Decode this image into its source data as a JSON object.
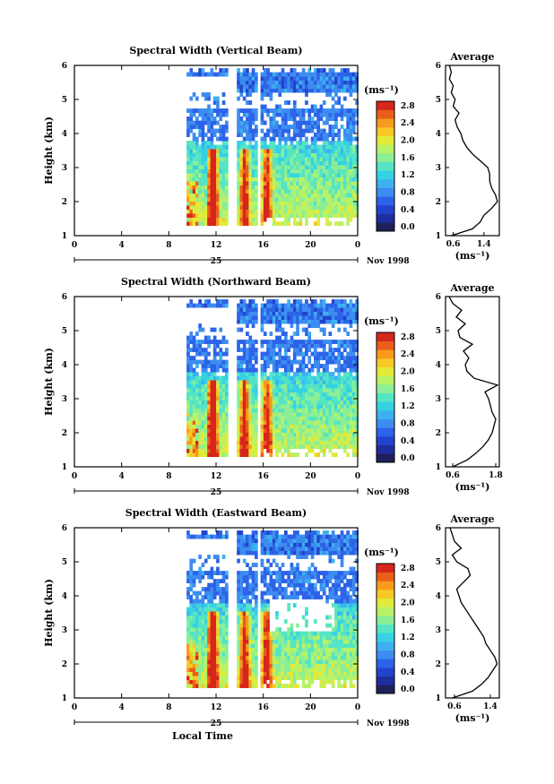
{
  "chart_data": [
    {
      "type": "heatmap",
      "title": "Spectral Width (Vertical Beam)",
      "ylabel": "Height (km)",
      "xlabel": "",
      "x_ticks": [
        "0",
        "4",
        "8",
        "12",
        "16",
        "20",
        "0"
      ],
      "y_ticks": [
        "1",
        "2",
        "3",
        "4",
        "5",
        "6"
      ],
      "xlim": [
        0,
        24
      ],
      "ylim": [
        1,
        6
      ],
      "date_day": "25",
      "date_label": "Nov 1998",
      "colorbar": {
        "unit": "(ms⁻¹)",
        "ticks": [
          "0.0",
          "0.4",
          "0.8",
          "1.2",
          "1.6",
          "2.0",
          "2.4",
          "2.8"
        ],
        "range": [
          0.0,
          3.0
        ]
      },
      "data_gaps_hours": [
        [
          0,
          9.5
        ],
        [
          13.0,
          13.6
        ],
        [
          15.3,
          15.7
        ]
      ],
      "average_profile": {
        "title": "Average",
        "xlabel": "(ms⁻¹)",
        "x_ticks": [
          "0.6",
          "1.4"
        ],
        "xlim": [
          0.4,
          1.8
        ],
        "y_ticks": [
          "1",
          "2",
          "3",
          "4",
          "5",
          "6"
        ],
        "height": [
          1.0,
          1.2,
          1.4,
          1.6,
          1.8,
          2.0,
          2.2,
          2.4,
          2.6,
          2.8,
          3.0,
          3.2,
          3.4,
          3.6,
          3.8,
          4.0,
          4.2,
          4.4,
          4.6,
          4.8,
          5.0,
          5.2,
          5.4,
          5.6,
          5.8,
          6.0
        ],
        "values": [
          0.55,
          1.1,
          1.3,
          1.4,
          1.6,
          1.75,
          1.7,
          1.6,
          1.55,
          1.55,
          1.5,
          1.3,
          1.1,
          0.95,
          0.85,
          0.8,
          0.7,
          0.65,
          0.75,
          0.6,
          0.65,
          0.55,
          0.6,
          0.5,
          0.55,
          0.5
        ]
      }
    },
    {
      "type": "heatmap",
      "title": "Spectral Width (Northward Beam)",
      "ylabel": "Height (km)",
      "xlabel": "",
      "x_ticks": [
        "0",
        "4",
        "8",
        "12",
        "16",
        "20",
        "0"
      ],
      "y_ticks": [
        "1",
        "2",
        "3",
        "4",
        "5",
        "6"
      ],
      "xlim": [
        0,
        24
      ],
      "ylim": [
        1,
        6
      ],
      "date_day": "25",
      "date_label": "Nov 1998",
      "colorbar": {
        "unit": "(ms⁻¹)",
        "ticks": [
          "0.0",
          "0.4",
          "0.8",
          "1.2",
          "1.6",
          "2.0",
          "2.4",
          "2.8"
        ],
        "range": [
          0.0,
          3.0
        ]
      },
      "data_gaps_hours": [
        [
          0,
          9.5
        ],
        [
          13.0,
          13.6
        ],
        [
          15.3,
          15.7
        ]
      ],
      "average_profile": {
        "title": "Average",
        "xlabel": "(ms⁻¹)",
        "x_ticks": [
          "0.6",
          "1.8"
        ],
        "xlim": [
          0.4,
          1.9
        ],
        "y_ticks": [
          "1",
          "2",
          "3",
          "4",
          "5",
          "6"
        ],
        "height": [
          1.0,
          1.2,
          1.4,
          1.6,
          1.8,
          2.0,
          2.2,
          2.4,
          2.6,
          2.8,
          3.0,
          3.2,
          3.4,
          3.6,
          3.8,
          4.0,
          4.2,
          4.4,
          4.6,
          4.8,
          5.0,
          5.2,
          5.4,
          5.6,
          5.8,
          6.0
        ],
        "values": [
          0.6,
          1.0,
          1.25,
          1.45,
          1.6,
          1.7,
          1.75,
          1.8,
          1.7,
          1.65,
          1.6,
          1.5,
          1.85,
          1.2,
          1.0,
          0.95,
          1.05,
          0.9,
          1.15,
          0.8,
          0.75,
          0.95,
          0.7,
          0.85,
          0.6,
          0.5
        ]
      }
    },
    {
      "type": "heatmap",
      "title": "Spectral Width (Eastward Beam)",
      "ylabel": "Height (km)",
      "xlabel": "Local Time",
      "x_ticks": [
        "0",
        "4",
        "8",
        "12",
        "16",
        "20",
        "0"
      ],
      "y_ticks": [
        "1",
        "2",
        "3",
        "4",
        "5",
        "6"
      ],
      "xlim": [
        0,
        24
      ],
      "ylim": [
        1,
        6
      ],
      "date_day": "25",
      "date_label": "Nov 1998",
      "colorbar": {
        "unit": "(ms⁻¹)",
        "ticks": [
          "0.0",
          "0.4",
          "0.8",
          "1.2",
          "1.6",
          "2.0",
          "2.4",
          "2.8"
        ],
        "range": [
          0.0,
          3.0
        ]
      },
      "data_gaps_hours": [
        [
          0,
          9.5
        ],
        [
          13.0,
          13.6
        ],
        [
          15.3,
          15.7
        ]
      ],
      "average_profile": {
        "title": "Average",
        "xlabel": "(ms⁻¹)",
        "x_ticks": [
          "0.6",
          "1.4"
        ],
        "xlim": [
          0.4,
          1.6
        ],
        "y_ticks": [
          "1",
          "2",
          "3",
          "4",
          "5",
          "6"
        ],
        "height": [
          1.0,
          1.2,
          1.4,
          1.6,
          1.8,
          2.0,
          2.2,
          2.4,
          2.6,
          2.8,
          3.0,
          3.2,
          3.4,
          3.6,
          3.8,
          4.0,
          4.2,
          4.4,
          4.6,
          4.8,
          5.0,
          5.2,
          5.4,
          5.6,
          5.8,
          6.0
        ],
        "values": [
          0.55,
          1.0,
          1.2,
          1.35,
          1.45,
          1.55,
          1.5,
          1.4,
          1.3,
          1.25,
          1.15,
          1.05,
          0.95,
          0.85,
          0.75,
          0.7,
          0.65,
          0.8,
          0.95,
          0.9,
          0.65,
          0.55,
          0.75,
          0.6,
          0.55,
          0.5
        ]
      }
    }
  ],
  "colormap": [
    "#20205a",
    "#1e2e9c",
    "#2244cc",
    "#2d63e8",
    "#3d8cf0",
    "#3db1f0",
    "#36d2e4",
    "#55e4c4",
    "#8aef96",
    "#b8f266",
    "#e2ea3a",
    "#f7c826",
    "#f89a1c",
    "#ea5e1a",
    "#d6261b"
  ]
}
